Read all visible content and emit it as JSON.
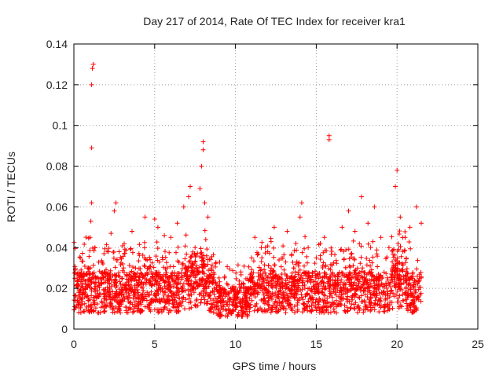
{
  "chart_data": {
    "type": "scatter",
    "title": "Day 217 of 2014, Rate Of TEC Index for receiver kra1",
    "xlabel": "GPS time / hours",
    "ylabel": "ROTI / TECUs",
    "xlim": [
      0,
      25
    ],
    "ylim": [
      0,
      0.14
    ],
    "xticks": [
      0,
      5,
      10,
      15,
      20,
      25
    ],
    "xtick_labels": [
      "0",
      "5",
      "10",
      "15",
      "20",
      "25"
    ],
    "yticks": [
      0,
      0.02,
      0.04,
      0.06,
      0.08,
      0.1,
      0.12,
      0.14
    ],
    "ytick_labels": [
      "0",
      "0.02",
      "0.04",
      "0.06",
      "0.08",
      "0.1",
      "0.12",
      "0.14"
    ],
    "grid": true,
    "marker": "+",
    "color": "#ff0000",
    "series": [
      {
        "name": "ROTI",
        "points": [
          [
            0.1,
            0.014
          ],
          [
            0.2,
            0.022
          ],
          [
            0.3,
            0.018
          ],
          [
            0.4,
            0.035
          ],
          [
            0.5,
            0.012
          ],
          [
            0.6,
            0.026
          ],
          [
            0.7,
            0.02
          ],
          [
            0.8,
            0.016
          ],
          [
            0.9,
            0.03
          ],
          [
            1.0,
            0.045
          ],
          [
            1.05,
            0.053
          ],
          [
            1.1,
            0.062
          ],
          [
            1.1,
            0.089
          ],
          [
            1.1,
            0.12
          ],
          [
            1.15,
            0.128
          ],
          [
            1.2,
            0.13
          ],
          [
            1.3,
            0.04
          ],
          [
            1.5,
            0.025
          ],
          [
            1.8,
            0.032
          ],
          [
            2.0,
            0.015
          ],
          [
            2.3,
            0.047
          ],
          [
            2.5,
            0.058
          ],
          [
            2.6,
            0.062
          ],
          [
            2.8,
            0.038
          ],
          [
            3.2,
            0.02
          ],
          [
            3.6,
            0.048
          ],
          [
            4.0,
            0.022
          ],
          [
            4.4,
            0.055
          ],
          [
            4.6,
            0.03
          ],
          [
            5.0,
            0.054
          ],
          [
            5.2,
            0.05
          ],
          [
            5.6,
            0.046
          ],
          [
            6.0,
            0.045
          ],
          [
            6.4,
            0.052
          ],
          [
            6.8,
            0.06
          ],
          [
            7.1,
            0.065
          ],
          [
            7.2,
            0.07
          ],
          [
            7.5,
            0.04
          ],
          [
            7.8,
            0.069
          ],
          [
            7.9,
            0.08
          ],
          [
            8.0,
            0.092
          ],
          [
            8.0,
            0.088
          ],
          [
            8.1,
            0.062
          ],
          [
            8.3,
            0.055
          ],
          [
            8.5,
            0.03
          ],
          [
            9.0,
            0.018
          ],
          [
            9.5,
            0.012
          ],
          [
            10.0,
            0.015
          ],
          [
            10.5,
            0.02
          ],
          [
            11.0,
            0.035
          ],
          [
            11.2,
            0.045
          ],
          [
            11.6,
            0.04
          ],
          [
            12.0,
            0.038
          ],
          [
            12.4,
            0.05
          ],
          [
            12.8,
            0.02
          ],
          [
            13.2,
            0.048
          ],
          [
            13.6,
            0.03
          ],
          [
            14.0,
            0.055
          ],
          [
            14.1,
            0.062
          ],
          [
            14.5,
            0.04
          ],
          [
            15.0,
            0.035
          ],
          [
            15.5,
            0.045
          ],
          [
            15.8,
            0.095
          ],
          [
            15.8,
            0.093
          ],
          [
            16.2,
            0.02
          ],
          [
            16.6,
            0.05
          ],
          [
            17.0,
            0.058
          ],
          [
            17.4,
            0.048
          ],
          [
            17.8,
            0.065
          ],
          [
            18.2,
            0.052
          ],
          [
            18.6,
            0.06
          ],
          [
            19.0,
            0.045
          ],
          [
            19.5,
            0.04
          ],
          [
            19.9,
            0.07
          ],
          [
            20.0,
            0.078
          ],
          [
            20.2,
            0.055
          ],
          [
            20.5,
            0.045
          ],
          [
            20.8,
            0.05
          ],
          [
            21.2,
            0.06
          ],
          [
            21.5,
            0.052
          ]
        ]
      }
    ],
    "generated_background_cloud": "dense band of points roughly 0.005-0.04 from 0 to 21.5 hours"
  }
}
